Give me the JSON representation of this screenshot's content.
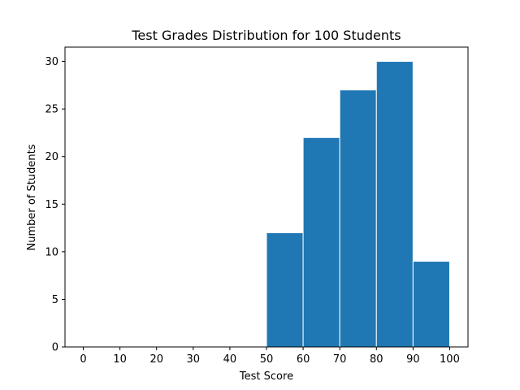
{
  "chart_data": {
    "type": "bar",
    "subtype": "histogram",
    "title": "Test Grades Distribution for 100 Students",
    "xlabel": "Test Score",
    "ylabel": "Number of Students",
    "bin_edges": [
      50,
      60,
      70,
      80,
      90,
      100
    ],
    "values": [
      12,
      22,
      27,
      30,
      9
    ],
    "xlim": [
      -5,
      105
    ],
    "ylim": [
      0,
      31.5
    ],
    "x_ticks": [
      0,
      10,
      20,
      30,
      40,
      50,
      60,
      70,
      80,
      90,
      100
    ],
    "y_ticks": [
      0,
      5,
      10,
      15,
      20,
      25,
      30
    ],
    "grid": false,
    "legend": "none",
    "bar_color": "#1f77b4",
    "edge_color": "#ffffff"
  }
}
